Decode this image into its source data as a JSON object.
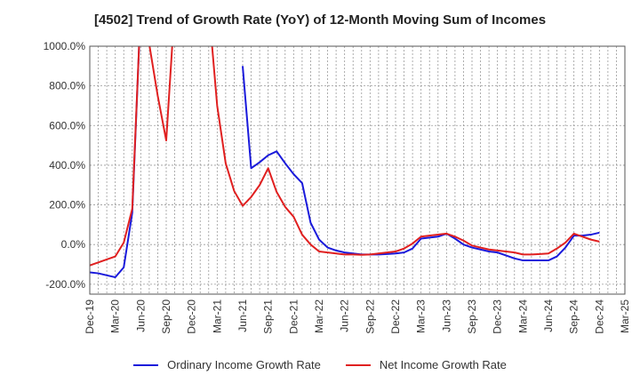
{
  "chart_data": {
    "type": "line",
    "title": "[4502]  Trend of Growth Rate (YoY) of 12-Month Moving Sum of Incomes",
    "xlabel": "",
    "ylabel": "",
    "ylim": [
      -250,
      1000
    ],
    "y_ticks": [
      -200,
      0,
      200,
      400,
      600,
      800,
      1000
    ],
    "y_tick_labels": [
      "-200.0%",
      "0.0%",
      "200.0%",
      "400.0%",
      "600.0%",
      "800.0%",
      "1000.0%"
    ],
    "x_ticks": [
      "Dec-19",
      "Mar-20",
      "Jun-20",
      "Sep-20",
      "Dec-20",
      "Mar-21",
      "Jun-21",
      "Sep-21",
      "Dec-21",
      "Mar-22",
      "Jun-22",
      "Sep-22",
      "Dec-22",
      "Mar-23",
      "Jun-23",
      "Sep-23",
      "Dec-23",
      "Mar-24",
      "Jun-24",
      "Sep-24",
      "Dec-24",
      "Mar-25"
    ],
    "grid": true,
    "legend_position": "bottom",
    "series": [
      {
        "name": "Ordinary Income Growth Rate",
        "color": "#1a1adb",
        "points": [
          [
            "Dec-19",
            -140
          ],
          [
            "Jan-20",
            -145
          ],
          [
            "Feb-20",
            -155
          ],
          [
            "Mar-20",
            -165
          ],
          [
            "Apr-20",
            -115
          ],
          [
            "May-20",
            160
          ],
          [
            "Jun-20",
            1200
          ],
          [
            "Jun-21",
            900
          ],
          [
            "Jul-21",
            385
          ],
          [
            "Aug-21",
            415
          ],
          [
            "Sep-21",
            450
          ],
          [
            "Oct-21",
            470
          ],
          [
            "Nov-21",
            410
          ],
          [
            "Dec-21",
            355
          ],
          [
            "Jan-22",
            310
          ],
          [
            "Feb-22",
            110
          ],
          [
            "Mar-22",
            25
          ],
          [
            "Apr-22",
            -15
          ],
          [
            "May-22",
            -30
          ],
          [
            "Jun-22",
            -40
          ],
          [
            "Jul-22",
            -45
          ],
          [
            "Aug-22",
            -50
          ],
          [
            "Sep-22",
            -50
          ],
          [
            "Oct-22",
            -50
          ],
          [
            "Nov-22",
            -48
          ],
          [
            "Dec-22",
            -45
          ],
          [
            "Jan-23",
            -40
          ],
          [
            "Feb-23",
            -20
          ],
          [
            "Mar-23",
            30
          ],
          [
            "Apr-23",
            35
          ],
          [
            "May-23",
            40
          ],
          [
            "Jun-23",
            55
          ],
          [
            "Jul-23",
            30
          ],
          [
            "Aug-23",
            0
          ],
          [
            "Sep-23",
            -15
          ],
          [
            "Oct-23",
            -25
          ],
          [
            "Nov-23",
            -35
          ],
          [
            "Dec-23",
            -40
          ],
          [
            "Jan-24",
            -55
          ],
          [
            "Feb-24",
            -70
          ],
          [
            "Mar-24",
            -80
          ],
          [
            "Apr-24",
            -80
          ],
          [
            "May-24",
            -80
          ],
          [
            "Jun-24",
            -80
          ],
          [
            "Jul-24",
            -60
          ],
          [
            "Aug-24",
            -15
          ],
          [
            "Sep-24",
            45
          ],
          [
            "Oct-24",
            45
          ],
          [
            "Nov-24",
            50
          ],
          [
            "Dec-24",
            60
          ]
        ]
      },
      {
        "name": "Net Income Growth Rate",
        "color": "#e02020",
        "points": [
          [
            "Dec-19",
            -105
          ],
          [
            "Jan-20",
            -90
          ],
          [
            "Feb-20",
            -75
          ],
          [
            "Mar-20",
            -60
          ],
          [
            "Apr-20",
            10
          ],
          [
            "May-20",
            180
          ],
          [
            "Jun-20",
            1200
          ],
          [
            "Jul-20",
            1010
          ],
          [
            "Aug-20",
            750
          ],
          [
            "Sep-20",
            525
          ],
          [
            "Oct-20",
            1200
          ],
          [
            "Feb-21",
            1200
          ],
          [
            "Mar-21",
            700
          ],
          [
            "Apr-21",
            410
          ],
          [
            "May-21",
            270
          ],
          [
            "Jun-21",
            195
          ],
          [
            "Jul-21",
            240
          ],
          [
            "Aug-21",
            300
          ],
          [
            "Sep-21",
            385
          ],
          [
            "Oct-21",
            265
          ],
          [
            "Nov-21",
            190
          ],
          [
            "Dec-21",
            140
          ],
          [
            "Jan-22",
            50
          ],
          [
            "Feb-22",
            0
          ],
          [
            "Mar-22",
            -35
          ],
          [
            "Apr-22",
            -40
          ],
          [
            "May-22",
            -45
          ],
          [
            "Jun-22",
            -50
          ],
          [
            "Jul-22",
            -50
          ],
          [
            "Aug-22",
            -52
          ],
          [
            "Sep-22",
            -50
          ],
          [
            "Oct-22",
            -45
          ],
          [
            "Nov-22",
            -40
          ],
          [
            "Dec-22",
            -35
          ],
          [
            "Jan-23",
            -20
          ],
          [
            "Feb-23",
            5
          ],
          [
            "Mar-23",
            40
          ],
          [
            "Apr-23",
            45
          ],
          [
            "May-23",
            50
          ],
          [
            "Jun-23",
            55
          ],
          [
            "Jul-23",
            40
          ],
          [
            "Aug-23",
            20
          ],
          [
            "Sep-23",
            -5
          ],
          [
            "Oct-23",
            -15
          ],
          [
            "Nov-23",
            -25
          ],
          [
            "Dec-23",
            -30
          ],
          [
            "Jan-24",
            -35
          ],
          [
            "Feb-24",
            -40
          ],
          [
            "Mar-24",
            -50
          ],
          [
            "Apr-24",
            -50
          ],
          [
            "May-24",
            -48
          ],
          [
            "Jun-24",
            -45
          ],
          [
            "Jul-24",
            -20
          ],
          [
            "Aug-24",
            10
          ],
          [
            "Sep-24",
            55
          ],
          [
            "Oct-24",
            40
          ],
          [
            "Nov-24",
            25
          ],
          [
            "Dec-24",
            15
          ]
        ]
      }
    ]
  }
}
